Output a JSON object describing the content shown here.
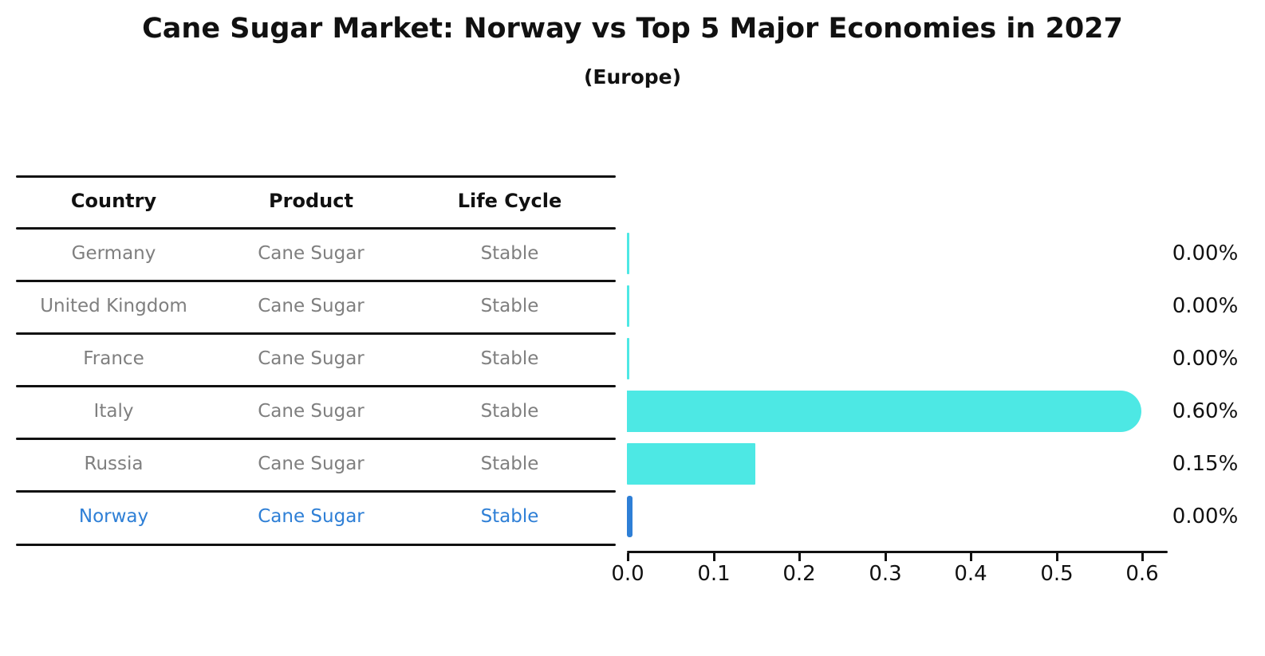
{
  "title": "Cane Sugar Market: Norway vs Top 5 Major Economies in 2027",
  "subtitle": "(Europe)",
  "table": {
    "headers": {
      "country": "Country",
      "product": "Product",
      "life_cycle": "Life Cycle"
    },
    "rows": [
      {
        "country": "Germany",
        "product": "Cane Sugar",
        "life_cycle": "Stable"
      },
      {
        "country": "United Kingdom",
        "product": "Cane Sugar",
        "life_cycle": "Stable"
      },
      {
        "country": "France",
        "product": "Cane Sugar",
        "life_cycle": "Stable"
      },
      {
        "country": "Italy",
        "product": "Cane Sugar",
        "life_cycle": "Stable"
      },
      {
        "country": "Russia",
        "product": "Cane Sugar",
        "life_cycle": "Stable"
      },
      {
        "country": "Norway",
        "product": "Cane Sugar",
        "life_cycle": "Stable"
      }
    ],
    "highlight_row": "Norway"
  },
  "chart_data": {
    "type": "bar",
    "orientation": "horizontal",
    "title": "Cane Sugar Market: Norway vs Top 5 Major Economies in 2027",
    "subtitle": "(Europe)",
    "categories": [
      "Germany",
      "United Kingdom",
      "France",
      "Italy",
      "Russia",
      "Norway"
    ],
    "values": [
      0.0,
      0.0,
      0.0,
      0.6,
      0.15,
      0.0
    ],
    "value_labels": [
      "0.00%",
      "0.00%",
      "0.00%",
      "0.60%",
      "0.15%",
      "0.00%"
    ],
    "xlabel": "",
    "ylabel": "",
    "xlim": [
      0.0,
      0.63
    ],
    "xticks": [
      0.0,
      0.1,
      0.2,
      0.3,
      0.4,
      0.5,
      0.6
    ],
    "xtick_labels": [
      "0.0",
      "0.1",
      "0.2",
      "0.3",
      "0.4",
      "0.5",
      "0.6"
    ],
    "grid": false,
    "legend": false,
    "bar_color": "#4de8e4",
    "highlight_color": "#2e7fd6",
    "highlight_index": 5
  },
  "colors": {
    "text_primary": "#111111",
    "text_muted": "#7f7f7f",
    "highlight": "#2e7fd6",
    "bar": "#4de8e4",
    "line": "#1b1b1b"
  }
}
